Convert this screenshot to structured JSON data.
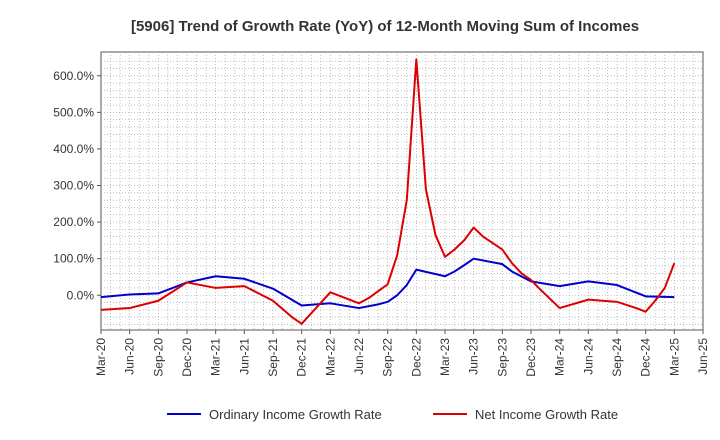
{
  "chart_data": {
    "type": "line",
    "title": "[5906]  Trend of Growth Rate (YoY) of 12-Month Moving Sum of Incomes",
    "xlabel": "",
    "ylabel": "",
    "ylim": [
      -95,
      665
    ],
    "yticks": [
      0,
      100,
      200,
      300,
      400,
      500,
      600
    ],
    "ytick_labels": [
      "0.0%",
      "100.0%",
      "200.0%",
      "300.0%",
      "400.0%",
      "500.0%",
      "600.0%"
    ],
    "x_range": [
      "2020-03",
      "2025-06"
    ],
    "xtick_labels": [
      "Mar-20",
      "Jun-20",
      "Sep-20",
      "Dec-20",
      "Mar-21",
      "Jun-21",
      "Sep-21",
      "Dec-21",
      "Mar-22",
      "Jun-22",
      "Sep-22",
      "Dec-22",
      "Mar-23",
      "Jun-23",
      "Sep-23",
      "Dec-23",
      "Mar-24",
      "Jun-24",
      "Sep-24",
      "Dec-24",
      "Mar-25",
      "Jun-25"
    ],
    "grid": true,
    "legend_position": "bottom",
    "series": [
      {
        "name": "Ordinary Income Growth Rate",
        "color": "#0000cc",
        "points": [
          [
            "2020-03",
            -5
          ],
          [
            "2020-06",
            2
          ],
          [
            "2020-09",
            5
          ],
          [
            "2020-12",
            35
          ],
          [
            "2021-03",
            52
          ],
          [
            "2021-06",
            45
          ],
          [
            "2021-09",
            18
          ],
          [
            "2021-12",
            -28
          ],
          [
            "2022-03",
            -22
          ],
          [
            "2022-06",
            -35
          ],
          [
            "2022-08",
            -25
          ],
          [
            "2022-09",
            -18
          ],
          [
            "2022-10",
            0
          ],
          [
            "2022-11",
            28
          ],
          [
            "2022-12",
            70
          ],
          [
            "2023-03",
            52
          ],
          [
            "2023-04",
            65
          ],
          [
            "2023-05",
            82
          ],
          [
            "2023-06",
            100
          ],
          [
            "2023-09",
            85
          ],
          [
            "2023-10",
            65
          ],
          [
            "2023-12",
            38
          ],
          [
            "2024-03",
            25
          ],
          [
            "2024-06",
            38
          ],
          [
            "2024-09",
            28
          ],
          [
            "2024-12",
            -3
          ],
          [
            "2025-03",
            -5
          ]
        ]
      },
      {
        "name": "Net Income Growth Rate",
        "color": "#dd0000",
        "points": [
          [
            "2020-03",
            -40
          ],
          [
            "2020-06",
            -35
          ],
          [
            "2020-09",
            -15
          ],
          [
            "2020-12",
            35
          ],
          [
            "2021-03",
            20
          ],
          [
            "2021-06",
            25
          ],
          [
            "2021-09",
            -15
          ],
          [
            "2021-11",
            -60
          ],
          [
            "2021-12",
            -78
          ],
          [
            "2022-03",
            8
          ],
          [
            "2022-06",
            -22
          ],
          [
            "2022-07",
            -8
          ],
          [
            "2022-09",
            30
          ],
          [
            "2022-10",
            110
          ],
          [
            "2022-11",
            260
          ],
          [
            "2022-12",
            645
          ],
          [
            "2023-01",
            290
          ],
          [
            "2023-02",
            165
          ],
          [
            "2023-03",
            105
          ],
          [
            "2023-04",
            125
          ],
          [
            "2023-05",
            150
          ],
          [
            "2023-06",
            185
          ],
          [
            "2023-07",
            160
          ],
          [
            "2023-09",
            125
          ],
          [
            "2023-10",
            88
          ],
          [
            "2023-11",
            60
          ],
          [
            "2023-12",
            42
          ],
          [
            "2024-01",
            15
          ],
          [
            "2024-03",
            -35
          ],
          [
            "2024-06",
            -12
          ],
          [
            "2024-09",
            -18
          ],
          [
            "2024-11",
            -35
          ],
          [
            "2024-12",
            -45
          ],
          [
            "2025-01",
            -15
          ],
          [
            "2025-02",
            20
          ],
          [
            "2025-03",
            88
          ]
        ]
      }
    ]
  }
}
